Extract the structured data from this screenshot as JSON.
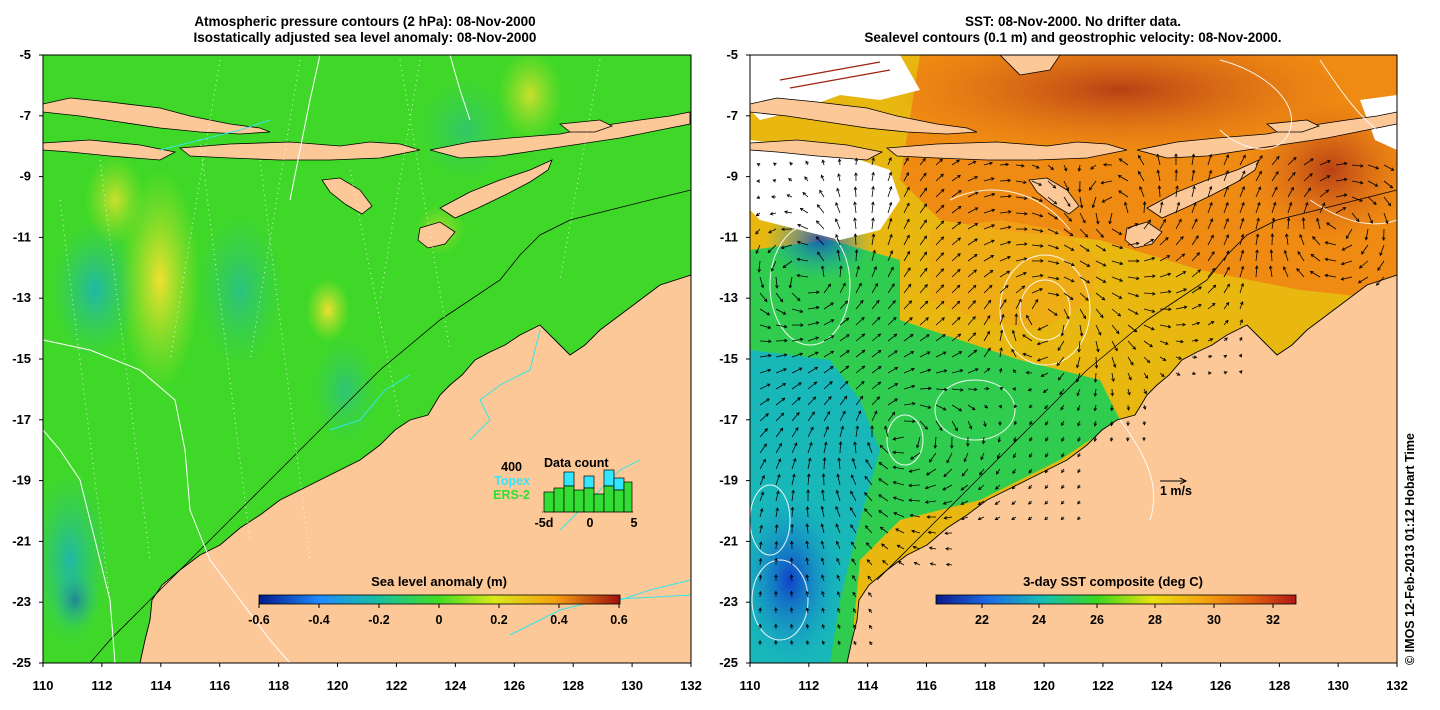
{
  "left_panel": {
    "title_line1": "Atmospheric pressure contours (2 hPa): 08-Nov-2000",
    "title_line2": "Isostatically adjusted sea level anomaly: 08-Nov-2000",
    "colorbar_title": "Sea level anomaly (m)",
    "colorbar_ticks": [
      "-0.6",
      "-0.4",
      "-0.2",
      "0",
      "0.2",
      "0.4",
      "0.6"
    ],
    "inset": {
      "title": "Data count",
      "max_label": "400",
      "series1": "Topex",
      "series2": "ERS-2",
      "x_labels": [
        "-5d",
        "0",
        "5"
      ],
      "series1_color": "#33e6ff",
      "series2_color": "#33dd33"
    }
  },
  "right_panel": {
    "title_line1": "SST: 08-Nov-2000. No drifter data.",
    "title_line2": "Sealevel contours (0.1 m) and geostrophic velocity: 08-Nov-2000.",
    "colorbar_title": "3-day SST composite (deg C)",
    "colorbar_ticks": [
      "22",
      "24",
      "26",
      "28",
      "30",
      "32"
    ],
    "velocity_scale_label": "1 m/s"
  },
  "axes": {
    "lat_labels": [
      "-5",
      "-7",
      "-9",
      "-11",
      "-13",
      "-15",
      "-17",
      "-19",
      "-21",
      "-23",
      "-25"
    ],
    "lon_labels": [
      "110",
      "112",
      "114",
      "116",
      "118",
      "120",
      "122",
      "124",
      "126",
      "128",
      "130",
      "132"
    ]
  },
  "credit": "© IMOS 12-Feb-2013 01:12 Hobart Time",
  "colors": {
    "land": "#fcc898",
    "ocean_green": "#44dd22",
    "sst_orange": "#f08a10",
    "sst_red": "#c8501a"
  }
}
